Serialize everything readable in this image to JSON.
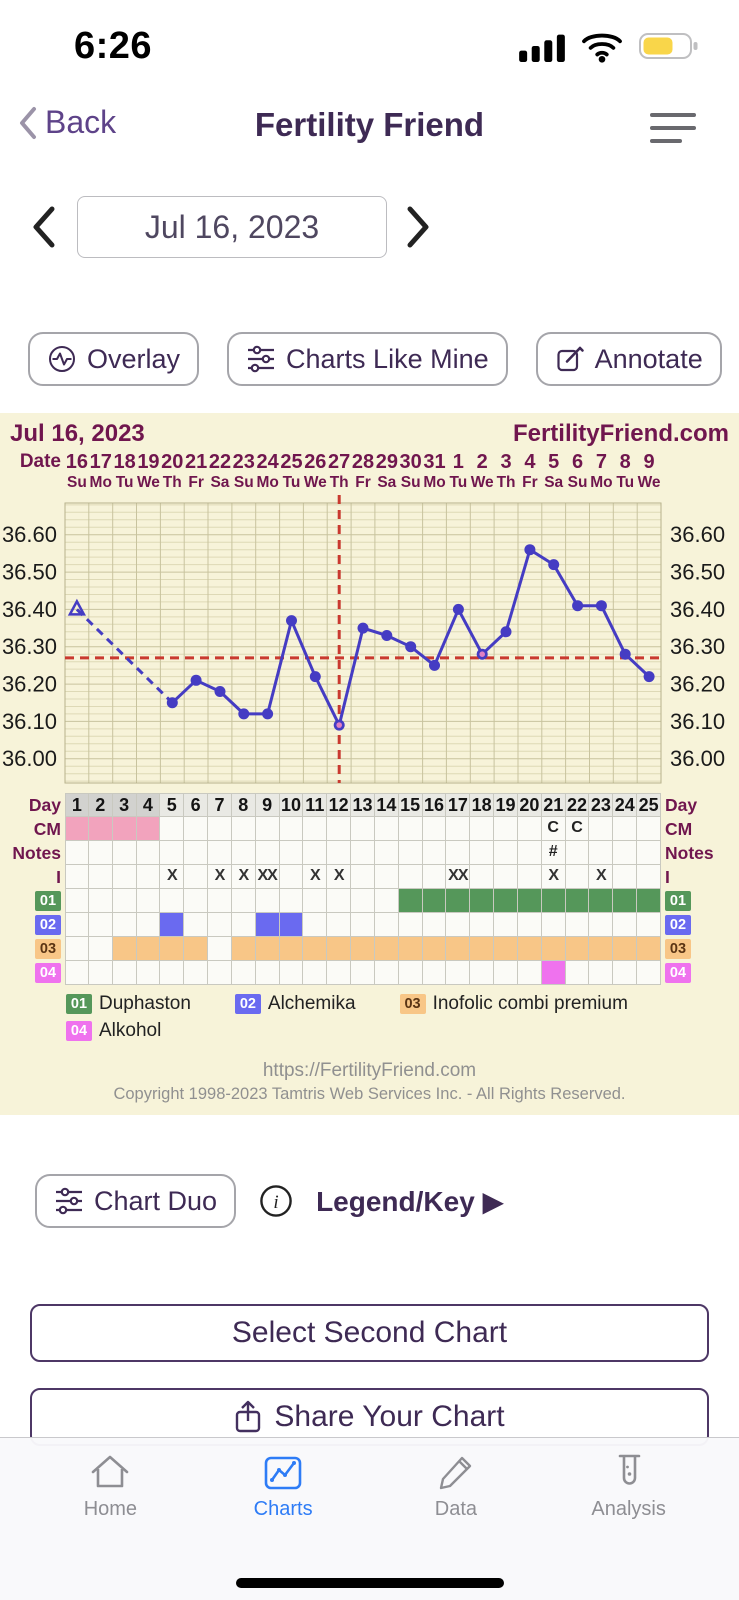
{
  "colors": {
    "accent_purple": "#3e2a54",
    "back_link_purple": "#5e4389",
    "chart_maroon": "#70164e",
    "chart_background": "#f7f3d9",
    "temp_line_blue": "#453cc3",
    "guide_red": "#c9392f",
    "tab_active_blue": "#2e7cf6",
    "tab_inactive_gray": "#8e8e93",
    "battery_yellow": "#f9d64a"
  },
  "icons": {
    "status": [
      "cellular-signal-icon",
      "wifi-icon",
      "battery-icon"
    ],
    "nav_right": "list-menu-icon",
    "overlay": "waveform-circle-icon",
    "charts_like_mine": "sliders-icon",
    "annotate": "compose-icon",
    "chart_duo": "sliders-icon",
    "legend_key": "info-circle-icon",
    "share": "share-icon",
    "tabs": [
      "home-icon",
      "line-chart-icon",
      "pencil-icon",
      "test-tube-icon"
    ]
  },
  "status_bar": {
    "time": "6:26"
  },
  "nav": {
    "back_label": "Back",
    "title": "Fertility Friend"
  },
  "date_nav": {
    "value": "Jul 16, 2023"
  },
  "actions": {
    "overlay": "Overlay",
    "charts_like_mine": "Charts Like Mine",
    "annotate": "Annotate"
  },
  "chart": {
    "header_left": "Jul 16, 2023",
    "header_right": "FertilityFriend.com",
    "row_labels": {
      "date": "Date",
      "day": "Day",
      "cm": "CM",
      "notes": "Notes",
      "intercourse": "I"
    },
    "footer_url": "https://FertilityFriend.com",
    "footer_copyright": "Copyright 1998-2023 Tamtris Web Services Inc. - All Rights Reserved."
  },
  "chart_data": {
    "type": "line",
    "title": "Jul 16, 2023",
    "cycle_days": 25,
    "x_dates": [
      "16",
      "17",
      "18",
      "19",
      "20",
      "21",
      "22",
      "23",
      "24",
      "25",
      "26",
      "27",
      "28",
      "29",
      "30",
      "31",
      "1",
      "2",
      "3",
      "4",
      "5",
      "6",
      "7",
      "8",
      "9"
    ],
    "x_weekdays": [
      "Su",
      "Mo",
      "Tu",
      "We",
      "Th",
      "Fr",
      "Sa",
      "Su",
      "Mo",
      "Tu",
      "We",
      "Th",
      "Fr",
      "Sa",
      "Su",
      "Mo",
      "Tu",
      "We",
      "Th",
      "Fr",
      "Sa",
      "Su",
      "Mo",
      "Tu",
      "We"
    ],
    "ylim": [
      35.93,
      36.69
    ],
    "ytick_labels": [
      "36.60",
      "36.50",
      "36.40",
      "36.30",
      "36.20",
      "36.10",
      "36.00"
    ],
    "temps_c": [
      36.4,
      null,
      null,
      null,
      36.15,
      36.21,
      36.18,
      36.12,
      36.12,
      36.37,
      36.22,
      36.09,
      36.35,
      36.33,
      36.3,
      36.25,
      36.4,
      36.28,
      36.34,
      36.56,
      36.52,
      36.41,
      36.41,
      36.28,
      36.22
    ],
    "first_point_open_triangle_day": 1,
    "outlined_dot_days": [
      12,
      18
    ],
    "coverline_c": 36.27,
    "ovulation_vertical_line_day": 12,
    "menses_days": [
      1,
      2,
      3,
      4
    ],
    "cm_values": {
      "21": "C",
      "22": "C"
    },
    "notes_values": {
      "21": "#"
    },
    "intercourse_values": {
      "5": "X",
      "7": "X",
      "8": "X",
      "9": "XX",
      "11": "X",
      "12": "X",
      "17": "XX",
      "21": "X",
      "23": "X"
    },
    "medication_rows": [
      {
        "id": "01",
        "label": "Duphaston",
        "color": "#55975a",
        "text_color": "#ffffff",
        "days": [
          15,
          16,
          17,
          18,
          19,
          20,
          21,
          22,
          23,
          24,
          25
        ]
      },
      {
        "id": "02",
        "label": "Alchemika",
        "color": "#6a6af0",
        "text_color": "#ffffff",
        "days": [
          5,
          9,
          10
        ]
      },
      {
        "id": "03",
        "label": "Inofolic combi premium",
        "color": "#f8c687",
        "text_color": "#5a3414",
        "days": [
          3,
          4,
          5,
          6,
          8,
          9,
          10,
          11,
          12,
          13,
          14,
          15,
          16,
          17,
          18,
          19,
          20,
          21,
          22,
          23,
          24,
          25
        ]
      },
      {
        "id": "04",
        "label": "Alkohol",
        "color": "#ef72ee",
        "text_color": "#ffffff",
        "days": [
          21
        ]
      }
    ],
    "legend_rows": [
      [
        0,
        1,
        2
      ],
      [
        3
      ]
    ]
  },
  "below_chart": {
    "chart_duo": "Chart Duo",
    "legend_key": "Legend/Key ▶"
  },
  "big_buttons": {
    "select_second_chart": "Select Second Chart",
    "share_your_chart": "Share Your Chart"
  },
  "tab_bar": {
    "items": [
      {
        "label": "Home",
        "active": false
      },
      {
        "label": "Charts",
        "active": true
      },
      {
        "label": "Data",
        "active": false
      },
      {
        "label": "Analysis",
        "active": false
      }
    ]
  }
}
